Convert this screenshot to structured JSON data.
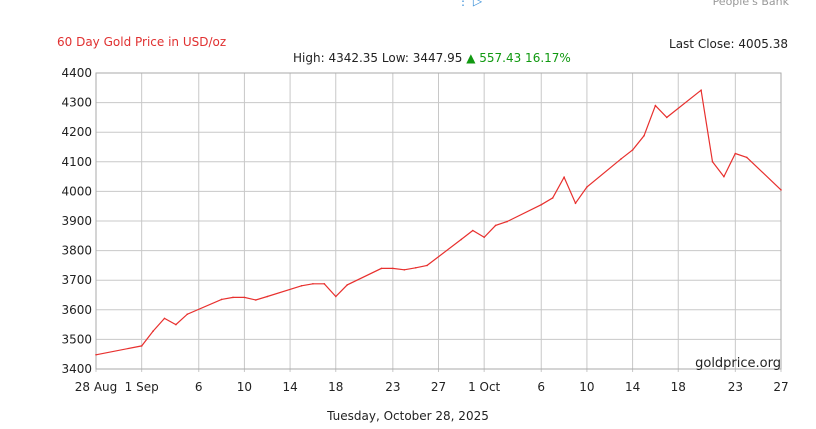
{
  "header": {
    "partial_icons": "⋮ ▷",
    "partial_bank": "People's Bank",
    "title": "60 Day Gold Price in USD/oz",
    "stats": {
      "high_label": "High: 4342.35",
      "low_label": "Low: 3447.95",
      "change_arrow": "▲",
      "change_text": "557.43 16.17%"
    },
    "last_close": "Last Close: 4005.38"
  },
  "footer": {
    "date": "Tuesday, October 28, 2025"
  },
  "watermark": "goldprice.org",
  "colors": {
    "line": "#e8302e",
    "grid": "#c8c8c8",
    "up": "#119911",
    "title": "#e03030"
  },
  "chart_data": {
    "type": "line",
    "title": "60 Day Gold Price in USD/oz",
    "xlabel": "Tuesday, October 28, 2025",
    "ylabel": "",
    "ylim": [
      3400,
      4400
    ],
    "grid": true,
    "x_ticks": [
      "28 Aug",
      "1 Sep",
      "6",
      "10",
      "14",
      "18",
      "23",
      "27",
      "1 Oct",
      "6",
      "10",
      "14",
      "18",
      "23",
      "27"
    ],
    "y_ticks": [
      3400,
      3500,
      3600,
      3700,
      3800,
      3900,
      4000,
      4100,
      4200,
      4300,
      4400
    ],
    "series": [
      {
        "x": [
          "2025-08-28",
          "2025-09-01",
          "2025-09-02",
          "2025-09-03",
          "2025-09-04",
          "2025-09-05",
          "2025-09-08",
          "2025-09-09",
          "2025-09-10",
          "2025-09-11",
          "2025-09-12",
          "2025-09-15",
          "2025-09-16",
          "2025-09-17",
          "2025-09-18",
          "2025-09-19",
          "2025-09-22",
          "2025-09-23",
          "2025-09-24",
          "2025-09-25",
          "2025-09-26",
          "2025-09-29",
          "2025-09-30",
          "2025-10-01",
          "2025-10-02",
          "2025-10-03",
          "2025-10-06",
          "2025-10-07",
          "2025-10-08",
          "2025-10-09",
          "2025-10-10",
          "2025-10-13",
          "2025-10-14",
          "2025-10-15",
          "2025-10-16",
          "2025-10-17",
          "2025-10-20",
          "2025-10-21",
          "2025-10-22",
          "2025-10-23",
          "2025-10-24",
          "2025-10-27"
        ],
        "values": [
          3448,
          3478,
          3528,
          3571,
          3550,
          3585,
          3635,
          3642,
          3642,
          3633,
          3645,
          3681,
          3688,
          3688,
          3645,
          3684,
          3740,
          3740,
          3735,
          3742,
          3750,
          3838,
          3868,
          3845,
          3885,
          3898,
          3955,
          3978,
          4048,
          3960,
          4015,
          4110,
          4140,
          4188,
          4290,
          4250,
          4342,
          4100,
          4050,
          4128,
          4115,
          4005
        ]
      }
    ]
  }
}
